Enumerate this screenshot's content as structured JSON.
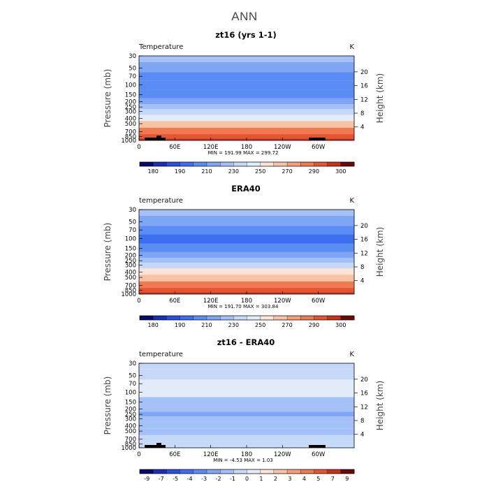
{
  "figure": {
    "main_title": "ANN",
    "y_axis_left_label": "Pressure (mb)",
    "y_axis_right_label": "Height (km)",
    "unit_label": "K"
  },
  "chart_data": [
    {
      "type": "heatmap",
      "panel_title": "zt16 (yrs 1-1)",
      "field_label": "Temperature",
      "unit": "K",
      "x_ticks": [
        "0",
        "60E",
        "120E",
        "180",
        "120W",
        "60W"
      ],
      "y_ticks_pressure_mb": [
        "30",
        "50",
        "70",
        "100",
        "150",
        "200",
        "250",
        "300",
        "400",
        "500",
        "700",
        "850",
        "1000"
      ],
      "y_ticks_height_km": [
        "20",
        "16",
        "12",
        "8",
        "4"
      ],
      "stats": "MIN = 191.99   MAX = 299.72",
      "min": 191.99,
      "max": 299.72,
      "colorbar_labels": [
        "180",
        "190",
        "210",
        "230",
        "250",
        "270",
        "290",
        "300"
      ],
      "colorbar_colors": [
        "#0a0a6e",
        "#1a2fb4",
        "#2a50e0",
        "#3b6ff0",
        "#5a8cf3",
        "#7ea6f5",
        "#a3c0f7",
        "#c6d8f8",
        "#e2ebf8",
        "#fde4d6",
        "#f8c2a5",
        "#f49e78",
        "#ef7a52",
        "#e55530",
        "#c8321a",
        "#6a0a06"
      ],
      "profile_levels_mb": [
        30,
        50,
        70,
        100,
        150,
        200,
        250,
        300,
        400,
        500,
        700,
        850,
        1000
      ],
      "profile_values_K": [
        225,
        215,
        210,
        205,
        210,
        215,
        222,
        230,
        245,
        258,
        275,
        285,
        292
      ]
    },
    {
      "type": "heatmap",
      "panel_title": "ERA40",
      "field_label": "temperature",
      "unit": "K",
      "x_ticks": [
        "0",
        "60E",
        "120E",
        "180",
        "120W",
        "60W"
      ],
      "y_ticks_pressure_mb": [
        "30",
        "50",
        "70",
        "100",
        "150",
        "200",
        "250",
        "300",
        "400",
        "500",
        "700",
        "850",
        "1000"
      ],
      "y_ticks_height_km": [
        "20",
        "16",
        "12",
        "8",
        "4"
      ],
      "stats": "MIN = 191.70   MAX = 303.84",
      "min": 191.7,
      "max": 303.84,
      "colorbar_labels": [
        "180",
        "190",
        "210",
        "230",
        "250",
        "270",
        "290",
        "300"
      ],
      "colorbar_colors": [
        "#0a0a6e",
        "#1a2fb4",
        "#2a50e0",
        "#3b6ff0",
        "#5a8cf3",
        "#7ea6f5",
        "#a3c0f7",
        "#c6d8f8",
        "#e2ebf8",
        "#fde4d6",
        "#f8c2a5",
        "#f49e78",
        "#ef7a52",
        "#e55530",
        "#c8321a",
        "#6a0a06"
      ],
      "profile_levels_mb": [
        30,
        50,
        70,
        100,
        150,
        200,
        250,
        300,
        400,
        500,
        700,
        850,
        1000
      ],
      "profile_values_K": [
        225,
        214,
        208,
        202,
        208,
        216,
        224,
        232,
        247,
        260,
        278,
        288,
        295
      ]
    },
    {
      "type": "heatmap",
      "panel_title": "zt16 - ERA40",
      "field_label": "temperature",
      "unit": "K",
      "x_ticks": [
        "0",
        "60E",
        "120E",
        "180",
        "120W",
        "60W"
      ],
      "y_ticks_pressure_mb": [
        "30",
        "50",
        "70",
        "100",
        "150",
        "200",
        "250",
        "300",
        "400",
        "500",
        "700",
        "850",
        "1000"
      ],
      "y_ticks_height_km": [
        "20",
        "16",
        "12",
        "8",
        "4"
      ],
      "stats": "MIN =   -4.53   MAX =    1.03",
      "min": -4.53,
      "max": 1.03,
      "colorbar_labels": [
        "-9",
        "-7",
        "-5",
        "-4",
        "-3",
        "-2",
        "-1",
        "0",
        "1",
        "2",
        "3",
        "4",
        "5",
        "7",
        "9"
      ],
      "colorbar_colors": [
        "#0a0a6e",
        "#1a2fb4",
        "#2a50e0",
        "#3b6ff0",
        "#5a8cf3",
        "#7ea6f5",
        "#a3c0f7",
        "#c6d8f8",
        "#e2ebf8",
        "#fde4d6",
        "#f8c2a5",
        "#f49e78",
        "#ef7a52",
        "#e55530",
        "#c8321a",
        "#6a0a06"
      ],
      "profile_levels_mb": [
        30,
        50,
        70,
        100,
        150,
        200,
        250,
        300,
        400,
        500,
        700,
        850,
        1000
      ],
      "profile_values_K": [
        -0.5,
        -0.6,
        0.5,
        0.3,
        -1.5,
        -2.5,
        -3.5,
        -2.5,
        -1.5,
        -1.5,
        -0.8,
        -1.2,
        -1.0
      ]
    }
  ]
}
